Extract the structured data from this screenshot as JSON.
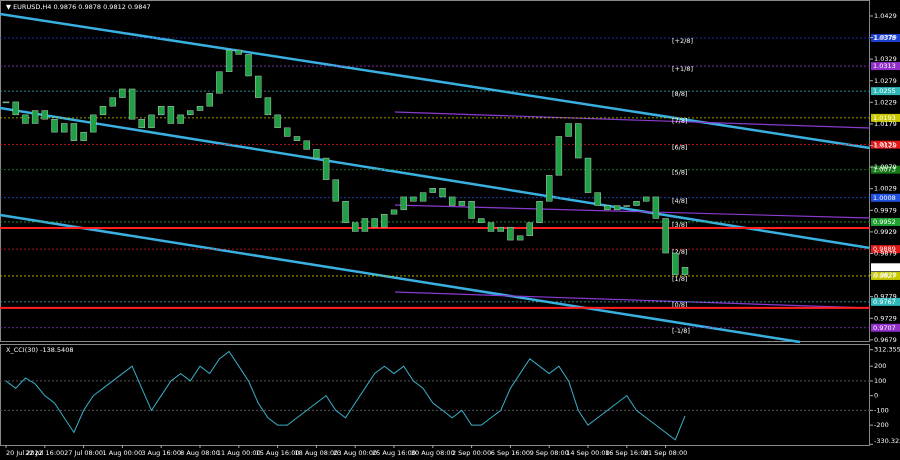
{
  "chart_data": [
    {
      "type": "candle-close",
      "title": "▼ EURUSD,H4 0.9876 0.9878 0.9812 0.9847",
      "color": "#1fa045",
      "line_color": "#3ab0e0",
      "categories": [
        "20 Jul 2022",
        null,
        null,
        null,
        "22 Jul 16:00",
        null,
        null,
        null,
        "27 Jul 08:00",
        null,
        null,
        null,
        "1 Aug 00:00",
        null,
        null,
        null,
        "3 Aug 16:00",
        null,
        null,
        null,
        "8 Aug 08:00",
        null,
        null,
        null,
        "11 Aug 00:00",
        null,
        null,
        null,
        "15 Aug 16:00",
        null,
        null,
        null,
        "18 Aug 08:00",
        null,
        null,
        null,
        "23 Aug 00:00",
        null,
        null,
        null,
        "25 Aug 16:00",
        null,
        null,
        null,
        "30 Aug 08:00",
        null,
        null,
        null,
        "2 Sep 00:00",
        null,
        null,
        null,
        "6 Sep 16:00",
        null,
        null,
        null,
        "9 Sep 08:00",
        null,
        null,
        null,
        "14 Sep 00:00",
        null,
        null,
        null,
        "16 Sep 16:00",
        null,
        null,
        null,
        "21 Sep 08:00",
        null,
        null
      ],
      "values": [
        1.023,
        1.02,
        1.018,
        1.021,
        1.019,
        1.016,
        1.018,
        1.014,
        1.016,
        1.02,
        1.022,
        1.024,
        1.026,
        1.019,
        1.017,
        1.02,
        1.022,
        1.018,
        1.02,
        1.021,
        1.022,
        1.025,
        1.03,
        1.035,
        1.034,
        1.029,
        1.024,
        1.02,
        1.017,
        1.015,
        1.014,
        1.012,
        1.01,
        1.005,
        1.0,
        0.995,
        0.993,
        0.996,
        0.994,
        0.997,
        0.998,
        1.001,
        1.0,
        1.002,
        1.003,
        1.001,
        0.999,
        1.0,
        0.996,
        0.995,
        0.993,
        0.994,
        0.991,
        0.992,
        0.995,
        1.0,
        1.006,
        1.015,
        1.018,
        1.01,
        1.002,
        0.999,
        0.998,
        0.999,
        0.999,
        1.0,
        1.001,
        0.996,
        0.988,
        0.983,
        0.9847
      ],
      "ylim": [
        0.9674,
        1.0466
      ],
      "yticks": [
        0.9679,
        0.9729,
        0.9779,
        0.9829,
        0.9879,
        0.9929,
        0.9979,
        1.0029,
        1.0079,
        1.0129,
        1.0179,
        1.0229,
        1.0279,
        1.0329,
        1.0379,
        1.0429
      ],
      "current": 0.9847,
      "levels": [
        {
          "label": "[+2/8]",
          "value": 1.0378,
          "color": "#1c3fd0"
        },
        {
          "label": "[+1/8]",
          "value": 1.0313,
          "color": "#9030c8"
        },
        {
          "label": "[8/8]",
          "value": 1.0255,
          "color": "#30b8b8"
        },
        {
          "label": "[7/8]",
          "value": 1.0193,
          "color": "#c8c800"
        },
        {
          "label": "[6/8]",
          "value": 1.0131,
          "color": "#e01818"
        },
        {
          "label": "[5/8]",
          "value": 1.0073,
          "color": "#187818"
        },
        {
          "label": "[4/8]",
          "value": 1.0008,
          "color": "#2050e0"
        },
        {
          "label": "[3/8]",
          "value": 0.9952,
          "color": "#20a030"
        },
        {
          "label": "[2/8]",
          "value": 0.9889,
          "color": "#e01818"
        },
        {
          "label": "[1/8]",
          "value": 0.9827,
          "color": "#c8c800"
        },
        {
          "label": "[0/8]",
          "value": 0.9767,
          "color": "#30b8b8"
        },
        {
          "label": "[-1/8]",
          "value": 0.9707,
          "color": "#9030c8"
        }
      ],
      "hlines": [
        0.9938,
        0.9753
      ],
      "hline_color": "#ff2020"
    },
    {
      "type": "line",
      "title": "X_CCI(30) -138.5408",
      "color": "#3ab0c8",
      "values": [
        100,
        50,
        120,
        80,
        0,
        -50,
        -150,
        -250,
        -100,
        0,
        50,
        100,
        150,
        200,
        50,
        -100,
        0,
        100,
        150,
        100,
        200,
        150,
        250,
        300,
        200,
        100,
        -50,
        -150,
        -200,
        -200,
        -150,
        -100,
        -50,
        0,
        -100,
        -150,
        -50,
        50,
        150,
        200,
        150,
        200,
        100,
        50,
        -50,
        -100,
        -150,
        -100,
        -200,
        -200,
        -150,
        -100,
        50,
        150,
        250,
        200,
        150,
        200,
        100,
        -100,
        -200,
        -150,
        -100,
        -50,
        0,
        -100,
        -150,
        -200,
        -250,
        -300,
        -138.5408
      ],
      "ylim": [
        -335,
        344
      ],
      "yticks": [
        312.3558,
        200,
        100,
        0,
        -100,
        -200,
        -330.322
      ]
    }
  ]
}
